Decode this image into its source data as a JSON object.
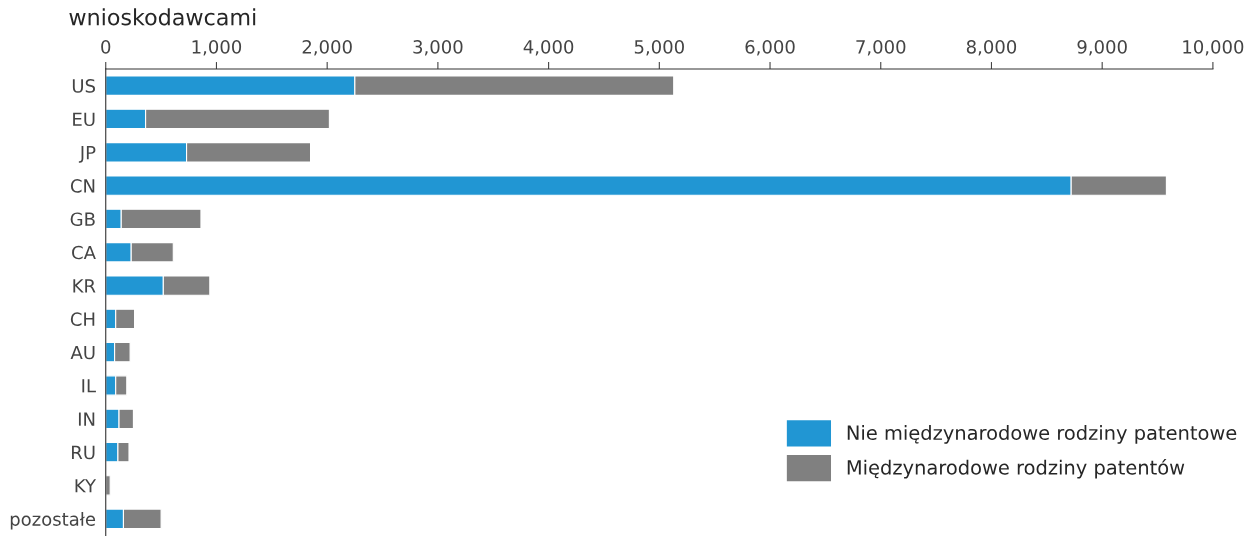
{
  "chart_data": {
    "type": "bar",
    "orientation": "horizontal",
    "stacked": true,
    "title": "wnioskodawcami",
    "categories": [
      "US",
      "EU",
      "JP",
      "CN",
      "GB",
      "CA",
      "KR",
      "CH",
      "AU",
      "IL",
      "IN",
      "RU",
      "KY",
      "pozostałe"
    ],
    "series": [
      {
        "name": "Nie międzynarodowe rodziny patentowe",
        "color": "#2196d3",
        "values": [
          2250,
          360,
          730,
          8720,
          140,
          230,
          520,
          90,
          80,
          90,
          120,
          110,
          null,
          160
        ]
      },
      {
        "name": "Międzynarodowe rodziny patentów",
        "color": "#808080",
        "values": [
          2880,
          1660,
          1120,
          860,
          720,
          380,
          420,
          170,
          140,
          100,
          130,
          100,
          40,
          340
        ]
      }
    ],
    "xlim": [
      0,
      10000
    ],
    "xticks": [
      {
        "value": 0,
        "label": "0"
      },
      {
        "value": 1000,
        "label": "1,000"
      },
      {
        "value": 2000,
        "label": "2,000"
      },
      {
        "value": 3000,
        "label": "3,000"
      },
      {
        "value": 4000,
        "label": "4,000"
      },
      {
        "value": 5000,
        "label": "5,000"
      },
      {
        "value": 6000,
        "label": "6,000"
      },
      {
        "value": 7000,
        "label": "7,000"
      },
      {
        "value": 8000,
        "label": "8,000"
      },
      {
        "value": 9000,
        "label": "9,000"
      },
      {
        "value": 10000,
        "label": "10,000"
      }
    ],
    "grid": false,
    "legend": "bottom right"
  }
}
